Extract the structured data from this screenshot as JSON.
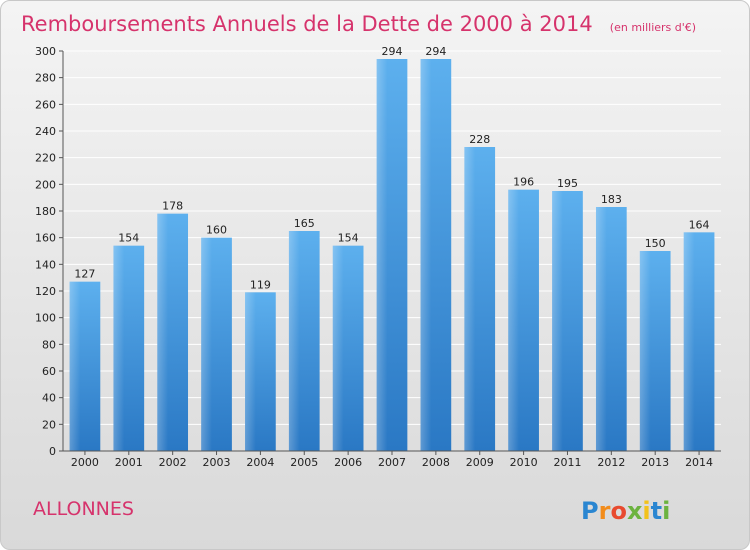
{
  "chart_data": {
    "type": "bar",
    "title": "Remboursements Annuels de la Dette de 2000 à 2014",
    "unit_note": "(en milliers d'€)",
    "categories": [
      "2000",
      "2001",
      "2002",
      "2003",
      "2004",
      "2005",
      "2006",
      "2007",
      "2008",
      "2009",
      "2010",
      "2011",
      "2012",
      "2013",
      "2014"
    ],
    "values": [
      127,
      154,
      178,
      160,
      119,
      165,
      154,
      294,
      294,
      228,
      196,
      195,
      183,
      150,
      164
    ],
    "ylim": [
      0,
      300
    ],
    "yticks": [
      0,
      20,
      40,
      60,
      80,
      100,
      120,
      140,
      160,
      180,
      200,
      220,
      240,
      260,
      280,
      300
    ],
    "grid": true,
    "bar_color": "#4a9be0",
    "title_color": "#d6336c"
  },
  "commune": "ALLONNES",
  "logo": {
    "text": "Proxiti",
    "letters": [
      "P",
      "r",
      "o",
      "x",
      "i",
      "t",
      "i"
    ],
    "letter_colors": [
      "#2a86d1",
      "#f28c1b",
      "#e84a2f",
      "#6cb33f",
      "#f2c21b",
      "#2a86d1",
      "#6cb33f"
    ]
  }
}
